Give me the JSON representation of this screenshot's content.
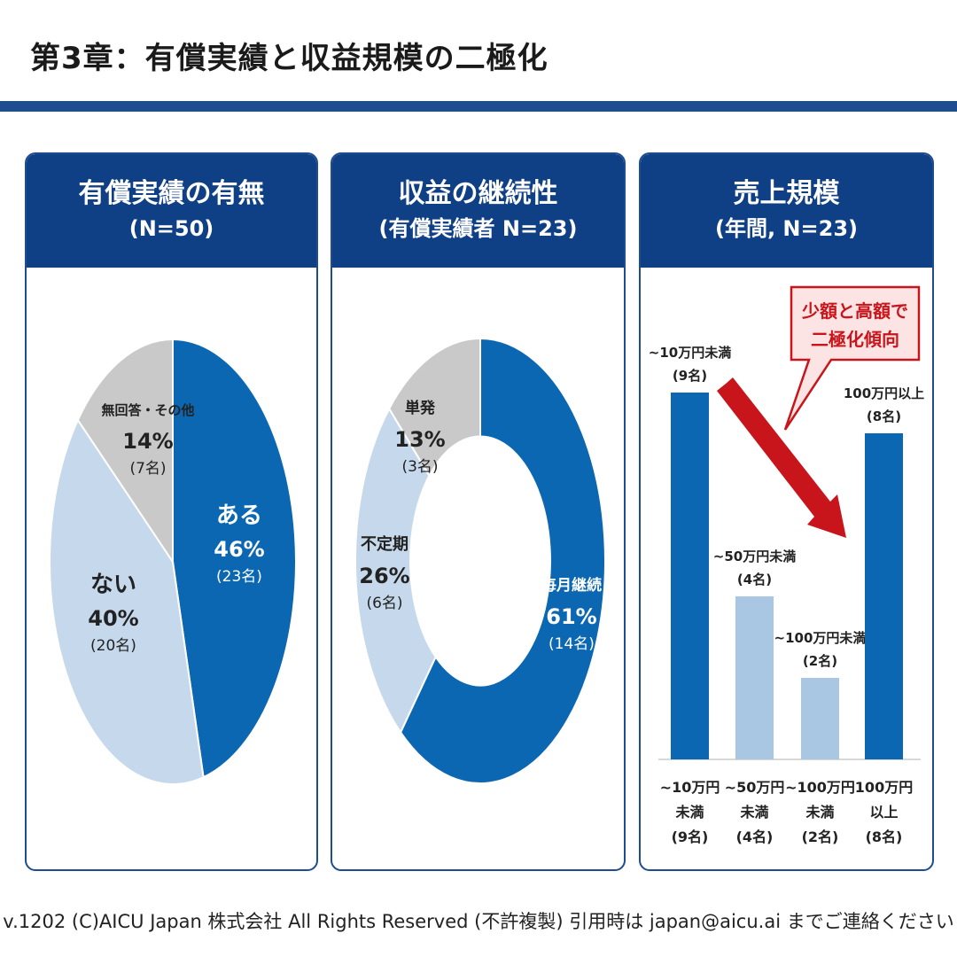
{
  "title": "第3章：有償実績と収益規模の二極化",
  "panels": [
    {
      "title": "有償実績の有無",
      "subtitle": "(N=50)"
    },
    {
      "title": "収益の継続性",
      "subtitle": "(有償実績者 N=23)"
    },
    {
      "title": "売上規模",
      "subtitle": "(年間, N=23)"
    }
  ],
  "chart_data": [
    {
      "type": "pie",
      "slices": [
        {
          "label": "ある",
          "pct": "46%",
          "count": "(23名)",
          "value": 46,
          "color": "#0b67b2"
        },
        {
          "label": "ない",
          "pct": "40%",
          "count": "(20名)",
          "value": 40,
          "color": "#c6d9ec"
        },
        {
          "label": "無回答・その他",
          "pct": "14%",
          "count": "(7名)",
          "value": 14,
          "color": "#c9c9c9"
        }
      ]
    },
    {
      "type": "pie",
      "donut": true,
      "slices": [
        {
          "label": "毎月継続",
          "pct": "61%",
          "count": "(14名)",
          "value": 61,
          "color": "#0b67b2"
        },
        {
          "label": "不定期",
          "pct": "26%",
          "count": "(6名)",
          "value": 26,
          "color": "#c6d9ec"
        },
        {
          "label": "単発",
          "pct": "13%",
          "count": "(3名)",
          "value": 13,
          "color": "#c9c9c9"
        }
      ]
    },
    {
      "type": "bar",
      "categories": [
        "~10万円未満",
        "~50万円未満",
        "~100万円未満",
        "100万円以上"
      ],
      "axis_labels": [
        [
          "~10万円",
          "未満",
          "(9名)"
        ],
        [
          "~50万円",
          "未満",
          "(4名)"
        ],
        [
          "~100万円",
          "未満",
          "(2名)"
        ],
        [
          "100万円",
          "以上",
          "(8名)"
        ]
      ],
      "data_labels": [
        [
          "~10万円未満",
          "(9名)"
        ],
        [
          "~50万円未満",
          "(4名)"
        ],
        [
          "~100万円未満",
          "(2名)"
        ],
        [
          "100万円以上",
          "(8名)"
        ]
      ],
      "values": [
        9,
        4,
        2,
        8
      ],
      "colors": [
        "#0b67b2",
        "#a9c6e2",
        "#a9c6e2",
        "#0b67b2"
      ],
      "callout": [
        "少額と高額で",
        "二極化傾向"
      ],
      "callout_color": "#c8151b"
    }
  ],
  "footer": "v.1202 (C)AICU Japan 株式会社 All Rights Reserved (不許複製) 引用時は japan@aicu.ai までご連絡ください"
}
